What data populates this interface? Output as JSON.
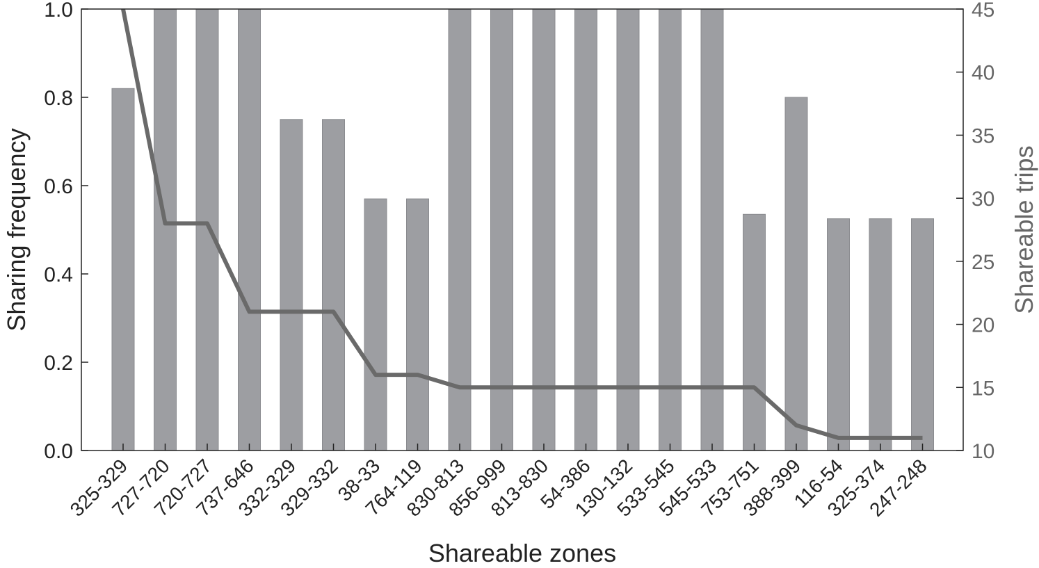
{
  "chart_data": {
    "type": "bar",
    "xlabel": "Shareable zones",
    "ylabel": "Sharing frequency",
    "y2label": "Shareable trips",
    "categories": [
      "325-329",
      "727-720",
      "720-727",
      "737-646",
      "332-329",
      "329-332",
      "38-33",
      "764-119",
      "830-813",
      "856-999",
      "813-830",
      "54-386",
      "130-132",
      "533-545",
      "545-533",
      "753-751",
      "388-399",
      "116-54",
      "325-374",
      "247-248"
    ],
    "ylim": [
      0,
      1.0
    ],
    "y2lim": [
      10,
      45
    ],
    "yticks": [
      "0.0",
      "0.2",
      "0.4",
      "0.6",
      "0.8",
      "1.0"
    ],
    "y2ticks": [
      "10",
      "15",
      "20",
      "25",
      "30",
      "35",
      "40",
      "45"
    ],
    "grid": false,
    "series": [
      {
        "type": "bar",
        "axis": "left",
        "values": [
          0.82,
          1.0,
          1.0,
          1.0,
          0.75,
          0.75,
          0.57,
          0.57,
          1.0,
          1.0,
          1.0,
          1.0,
          1.0,
          1.0,
          1.0,
          0.535,
          0.8,
          0.525,
          0.525,
          0.525
        ]
      },
      {
        "type": "line",
        "axis": "right",
        "values": [
          45,
          28,
          28,
          21,
          21,
          21,
          16,
          16,
          15,
          15,
          15,
          15,
          15,
          15,
          15,
          15,
          12,
          11,
          11,
          11
        ]
      }
    ],
    "colors": {
      "bar": "#9d9ea2",
      "bar_edge": "#8a8b8f",
      "line": "#6a6a6a",
      "axis": "#222222",
      "text": "#222222",
      "text_right": "#666666"
    }
  }
}
